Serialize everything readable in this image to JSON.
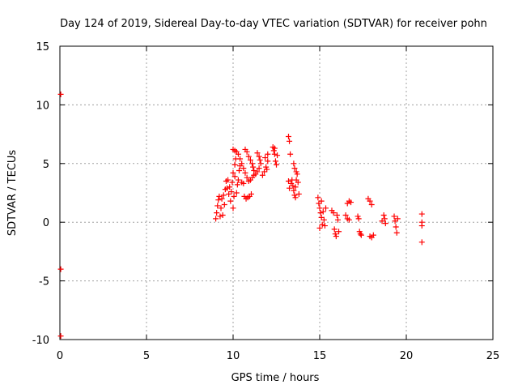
{
  "chart_data": {
    "type": "scatter",
    "title": "Day 124 of 2019, Sidereal Day-to-day VTEC variation (SDTVAR) for receiver pohn",
    "xlabel": "GPS time / hours",
    "ylabel": "SDTVAR / TECUs",
    "xlim": [
      0,
      25
    ],
    "ylim": [
      -10,
      15
    ],
    "xticks": [
      0,
      5,
      10,
      15,
      20,
      25
    ],
    "yticks": [
      -10,
      -5,
      0,
      5,
      10,
      15
    ],
    "grid": true,
    "marker": "plus",
    "color": "#ff0000",
    "series": [
      {
        "points": [
          [
            0.05,
            10.9
          ],
          [
            0.05,
            -4.0
          ],
          [
            0.05,
            -9.7
          ],
          [
            9.0,
            0.3
          ],
          [
            9.05,
            0.8
          ],
          [
            9.1,
            1.4
          ],
          [
            9.15,
            1.9
          ],
          [
            9.2,
            2.2
          ],
          [
            9.25,
            0.5
          ],
          [
            9.3,
            1.2
          ],
          [
            9.35,
            2.0
          ],
          [
            9.4,
            0.6
          ],
          [
            9.45,
            2.3
          ],
          [
            9.5,
            1.5
          ],
          [
            9.55,
            2.8
          ],
          [
            9.6,
            3.5
          ],
          [
            9.65,
            2.9
          ],
          [
            9.7,
            3.6
          ],
          [
            9.75,
            2.4
          ],
          [
            9.8,
            3.0
          ],
          [
            9.85,
            1.8
          ],
          [
            9.9,
            2.6
          ],
          [
            9.95,
            3.4
          ],
          [
            10.0,
            4.2
          ],
          [
            10.0,
            1.2
          ],
          [
            10.05,
            2.2
          ],
          [
            10.1,
            3.9
          ],
          [
            10.1,
            4.9
          ],
          [
            10.15,
            5.4
          ],
          [
            10.2,
            2.5
          ],
          [
            10.0,
            6.2
          ],
          [
            10.1,
            6.1
          ],
          [
            10.2,
            6.0
          ],
          [
            10.3,
            5.8
          ],
          [
            10.4,
            5.4
          ],
          [
            10.5,
            5.0
          ],
          [
            10.6,
            4.6
          ],
          [
            10.7,
            4.2
          ],
          [
            10.8,
            3.8
          ],
          [
            10.9,
            3.5
          ],
          [
            10.25,
            3.2
          ],
          [
            10.3,
            3.6
          ],
          [
            10.35,
            4.4
          ],
          [
            10.4,
            4.8
          ],
          [
            10.5,
            3.4
          ],
          [
            10.6,
            3.3
          ],
          [
            10.65,
            2.2
          ],
          [
            10.75,
            2.0
          ],
          [
            10.85,
            2.1
          ],
          [
            10.95,
            2.2
          ],
          [
            11.05,
            2.4
          ],
          [
            10.7,
            6.2
          ],
          [
            10.8,
            6.0
          ],
          [
            10.9,
            5.6
          ],
          [
            11.0,
            5.3
          ],
          [
            11.1,
            5.0
          ],
          [
            11.15,
            4.7
          ],
          [
            11.2,
            4.4
          ],
          [
            11.0,
            3.6
          ],
          [
            11.1,
            3.8
          ],
          [
            11.2,
            4.0
          ],
          [
            11.3,
            4.1
          ],
          [
            11.4,
            4.3
          ],
          [
            11.5,
            4.6
          ],
          [
            11.4,
            5.9
          ],
          [
            11.5,
            5.6
          ],
          [
            11.55,
            5.3
          ],
          [
            11.6,
            5.0
          ],
          [
            11.7,
            4.0
          ],
          [
            11.8,
            4.3
          ],
          [
            11.9,
            4.7
          ],
          [
            12.0,
            5.2
          ],
          [
            12.0,
            5.8
          ],
          [
            11.85,
            5.5
          ],
          [
            11.95,
            4.5
          ],
          [
            12.3,
            6.4
          ],
          [
            12.35,
            6.1
          ],
          [
            12.4,
            5.8
          ],
          [
            12.45,
            5.2
          ],
          [
            12.5,
            4.9
          ],
          [
            12.4,
            6.3
          ],
          [
            12.55,
            5.7
          ],
          [
            13.2,
            7.3
          ],
          [
            13.25,
            6.9
          ],
          [
            13.3,
            5.8
          ],
          [
            13.2,
            3.5
          ],
          [
            13.25,
            2.9
          ],
          [
            13.35,
            3.3
          ],
          [
            13.4,
            3.6
          ],
          [
            13.45,
            3.1
          ],
          [
            13.5,
            2.7
          ],
          [
            13.55,
            2.3
          ],
          [
            13.6,
            3.0
          ],
          [
            13.65,
            3.6
          ],
          [
            13.7,
            4.1
          ],
          [
            13.75,
            3.4
          ],
          [
            13.5,
            5.0
          ],
          [
            13.55,
            4.6
          ],
          [
            13.65,
            4.3
          ],
          [
            13.8,
            2.4
          ],
          [
            13.6,
            2.1
          ],
          [
            14.9,
            2.1
          ],
          [
            14.95,
            1.6
          ],
          [
            15.0,
            1.2
          ],
          [
            15.05,
            0.8
          ],
          [
            15.1,
            0.4
          ],
          [
            15.15,
            -0.2
          ],
          [
            15.0,
            -0.5
          ],
          [
            15.2,
            0.9
          ],
          [
            15.25,
            0.2
          ],
          [
            15.3,
            -0.3
          ],
          [
            15.35,
            1.2
          ],
          [
            15.1,
            1.8
          ],
          [
            15.7,
            1.0
          ],
          [
            15.8,
            0.8
          ],
          [
            15.85,
            -0.6
          ],
          [
            15.9,
            -1.0
          ],
          [
            15.95,
            -1.2
          ],
          [
            16.0,
            0.6
          ],
          [
            16.05,
            0.2
          ],
          [
            16.1,
            -0.8
          ],
          [
            16.5,
            0.6
          ],
          [
            16.6,
            0.3
          ],
          [
            16.7,
            0.2
          ],
          [
            16.6,
            1.6
          ],
          [
            16.7,
            1.8
          ],
          [
            16.8,
            1.7
          ],
          [
            17.2,
            0.5
          ],
          [
            17.25,
            0.3
          ],
          [
            17.3,
            -0.8
          ],
          [
            17.35,
            -1.0
          ],
          [
            17.4,
            -1.1
          ],
          [
            17.8,
            2.0
          ],
          [
            17.9,
            1.8
          ],
          [
            18.0,
            1.5
          ],
          [
            17.9,
            -1.2
          ],
          [
            18.0,
            -1.3
          ],
          [
            18.1,
            -1.1
          ],
          [
            18.6,
            0.1
          ],
          [
            18.7,
            0.6
          ],
          [
            18.75,
            0.3
          ],
          [
            18.8,
            -0.1
          ],
          [
            19.3,
            0.5
          ],
          [
            19.35,
            0.1
          ],
          [
            19.4,
            -0.4
          ],
          [
            19.45,
            -0.9
          ],
          [
            19.5,
            0.3
          ],
          [
            20.9,
            0.7
          ],
          [
            20.9,
            0.0
          ],
          [
            20.9,
            -0.3
          ],
          [
            20.9,
            -1.7
          ]
        ]
      }
    ]
  }
}
